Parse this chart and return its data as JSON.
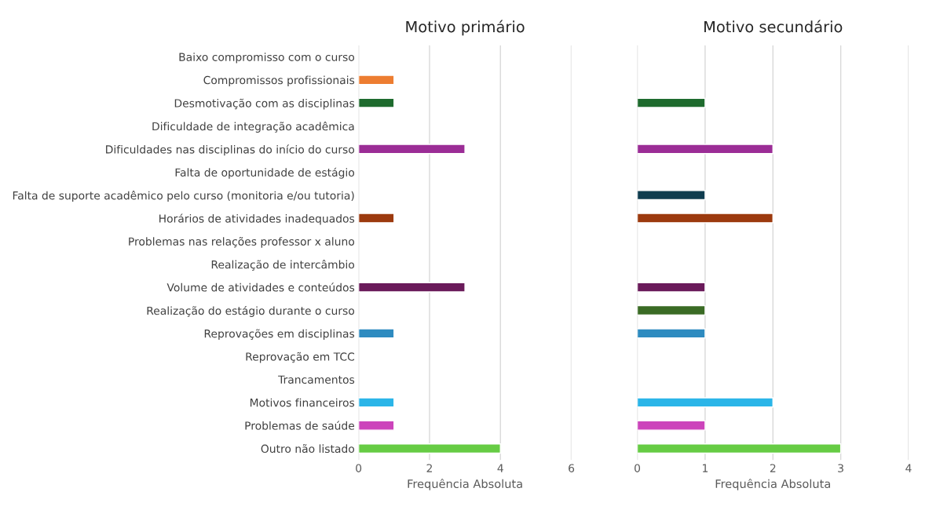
{
  "chart_data": [
    {
      "type": "bar",
      "orientation": "horizontal",
      "title": "Motivo primário",
      "xlabel": "Frequência Absoluta",
      "categories": [
        "Baixo compromisso com o curso",
        "Compromissos profissionais",
        "Desmotivação com as disciplinas",
        "Dificuldade de integração acadêmica",
        "Dificuldades nas disciplinas do início do curso",
        "Falta de oportunidade de estágio",
        "Falta de suporte acadêmico pelo curso (monitoria e/ou tutoria)",
        "Horários de atividades inadequados",
        "Problemas nas relações professor x aluno",
        "Realização de intercâmbio",
        "Volume de atividades e conteúdos",
        "Realização do estágio durante o curso",
        "Reprovações em disciplinas",
        "Reprovação em TCC",
        "Trancamentos",
        "Motivos financeiros",
        "Problemas de saúde",
        "Outro não listado"
      ],
      "values": [
        null,
        1,
        1,
        null,
        3,
        null,
        null,
        1,
        null,
        null,
        3,
        null,
        1,
        null,
        null,
        1,
        1,
        4
      ],
      "colors": [
        null,
        "#ed7d31",
        "#1e6b2e",
        null,
        "#9b2d96",
        null,
        null,
        "#9c3a0e",
        null,
        null,
        "#6a1b5a",
        null,
        "#2e8bc0",
        null,
        null,
        "#2bb5e8",
        "#cc44bb",
        "#66cc44"
      ],
      "xlim": [
        0,
        6
      ],
      "xticks": [
        0,
        2,
        4,
        6
      ],
      "grid": "x"
    },
    {
      "type": "bar",
      "orientation": "horizontal",
      "title": "Motivo secundário",
      "xlabel": "Frequência Absoluta",
      "categories": [
        null,
        null,
        null,
        null,
        null,
        null,
        null,
        null,
        null,
        null,
        null,
        null,
        null,
        null,
        null,
        null,
        null,
        null
      ],
      "values": [
        null,
        null,
        1,
        null,
        2,
        null,
        1,
        2,
        null,
        null,
        1,
        1,
        1,
        null,
        null,
        2,
        1,
        3
      ],
      "colors": [
        null,
        null,
        "#1e6b2e",
        null,
        "#9b2d96",
        null,
        "#0f3d4f",
        "#9c3a0e",
        null,
        null,
        "#6a1b5a",
        "#3a6b25",
        "#2e8bc0",
        null,
        null,
        "#2bb5e8",
        "#cc44bb",
        "#66cc44"
      ],
      "xlim": [
        0,
        4
      ],
      "xticks": [
        0,
        1,
        2,
        3,
        4
      ],
      "grid": "x",
      "tick_labels": "x"
    }
  ]
}
